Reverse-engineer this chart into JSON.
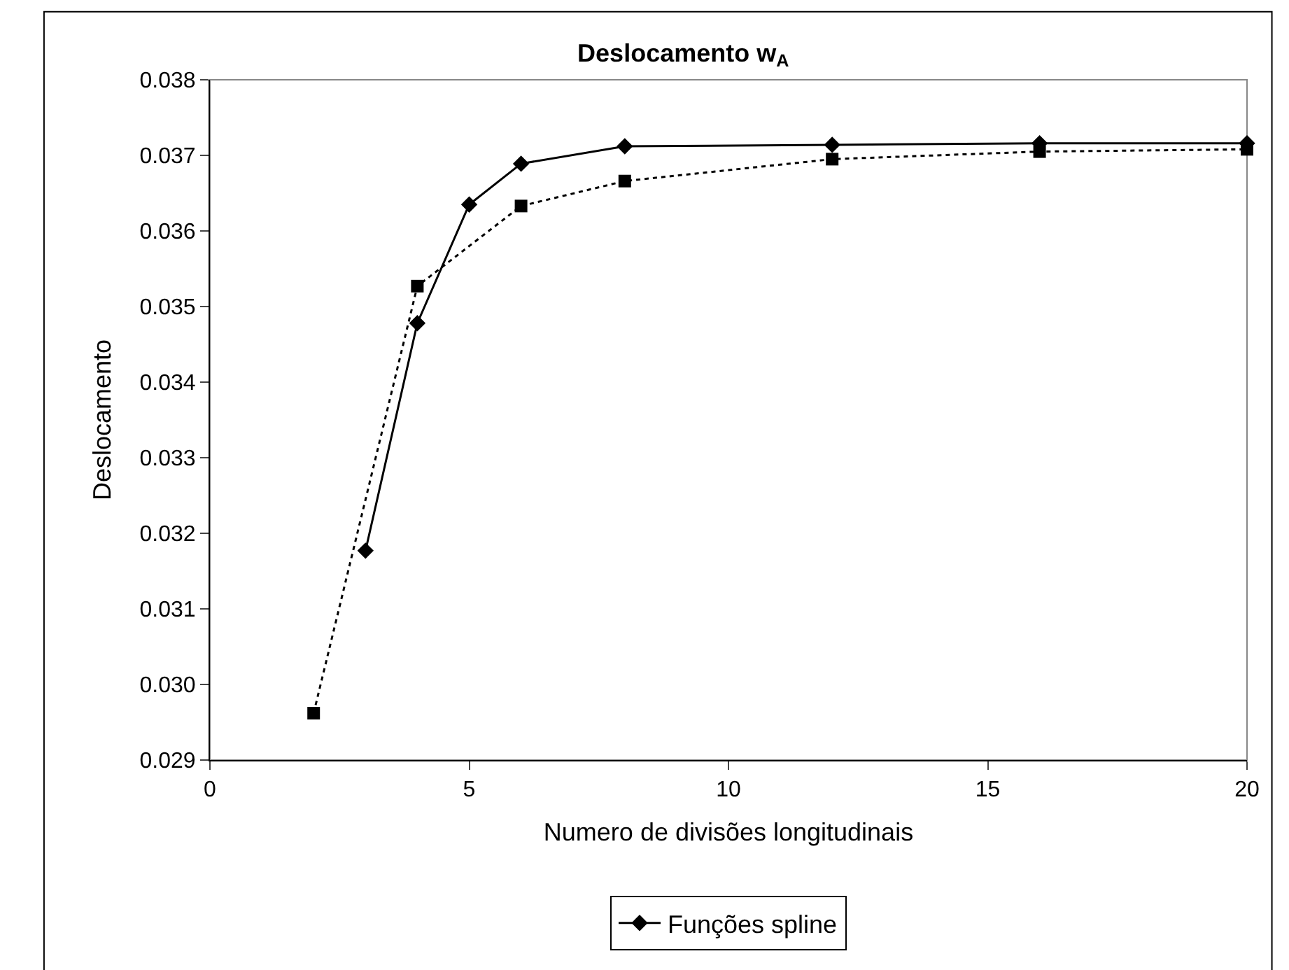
{
  "chart_data": {
    "type": "line",
    "title": "Deslocamento w$_{A}$",
    "xlabel": "Numero de divisões longitudinais",
    "ylabel": "Deslocamento",
    "xlim": [
      0,
      20
    ],
    "xticks": [
      0,
      5,
      10,
      15,
      20
    ],
    "ylim": [
      0.029,
      0.038
    ],
    "yticks": [
      {
        "value": 0.029,
        "label": "0.029"
      },
      {
        "value": 0.03,
        "label": "0.030"
      },
      {
        "value": 0.031,
        "label": "0.031"
      },
      {
        "value": 0.032,
        "label": "0.032"
      },
      {
        "value": 0.033,
        "label": "0.033"
      },
      {
        "value": 0.034,
        "label": "0.034"
      },
      {
        "value": 0.035,
        "label": "0.035"
      },
      {
        "value": 0.036,
        "label": "0.036"
      },
      {
        "value": 0.037,
        "label": "0.037"
      },
      {
        "value": 0.038,
        "label": "0.038"
      }
    ],
    "grid": false,
    "legend": "bottom",
    "series": [
      {
        "name": "Funções spline",
        "color": "#000000",
        "marker": "diamond",
        "line_style": "solid",
        "x": [
          3,
          4,
          5,
          6,
          8,
          12,
          16,
          20
        ],
        "values": [
          0.03177,
          0.03478,
          0.03635,
          0.03689,
          0.03712,
          0.03714,
          0.03716,
          0.03716
        ]
      },
      {
        "color": "#000000",
        "marker": "square",
        "line_style": "dotted",
        "x": [
          2,
          4,
          6,
          8,
          12,
          16,
          20
        ],
        "values": [
          0.02962,
          0.03527,
          0.03633,
          0.03666,
          0.03695,
          0.03705,
          0.03708
        ]
      }
    ]
  }
}
